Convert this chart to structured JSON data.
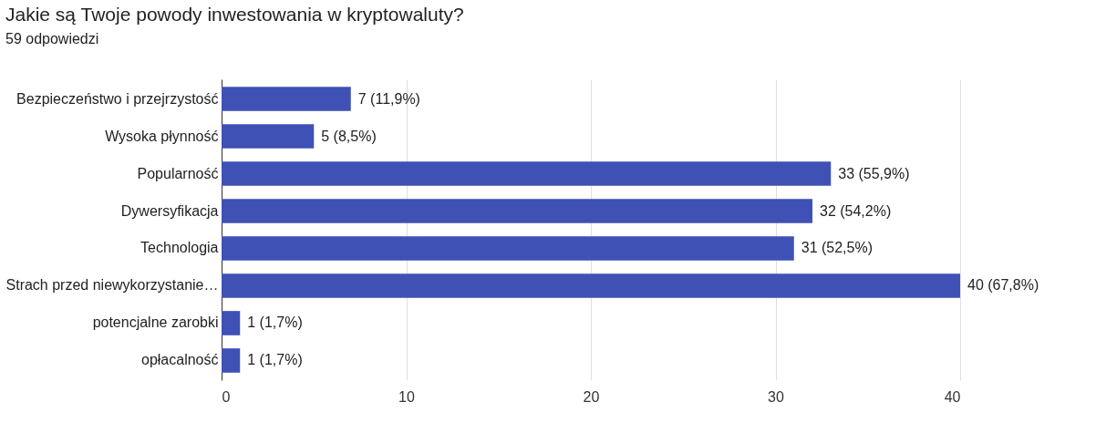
{
  "chart_data": {
    "type": "bar",
    "orientation": "horizontal",
    "title": "Jakie są Twoje powody inwestowania w kryptowaluty?",
    "subtitle": "59 odpowiedzi",
    "categories": [
      "Bezpieczeństwo i przejrzystość",
      "Wysoka płynność",
      "Popularność",
      "Dywersyfikacja",
      "Technologia",
      "Strach przed niewykorzystanie…",
      "potencjalne zarobki",
      "opłacalność"
    ],
    "values": [
      7,
      5,
      33,
      32,
      31,
      40,
      1,
      1
    ],
    "value_labels": [
      "7 (11,9%)",
      "5 (8,5%)",
      "33 (55,9%)",
      "32 (54,2%)",
      "31 (52,5%)",
      "40 (67,8%)",
      "1 (1,7%)",
      "1 (1,7%)"
    ],
    "color": "#3f51b5",
    "xlim": [
      0,
      40
    ],
    "xticks": [
      0,
      10,
      20,
      30,
      40
    ],
    "grid": "x"
  }
}
